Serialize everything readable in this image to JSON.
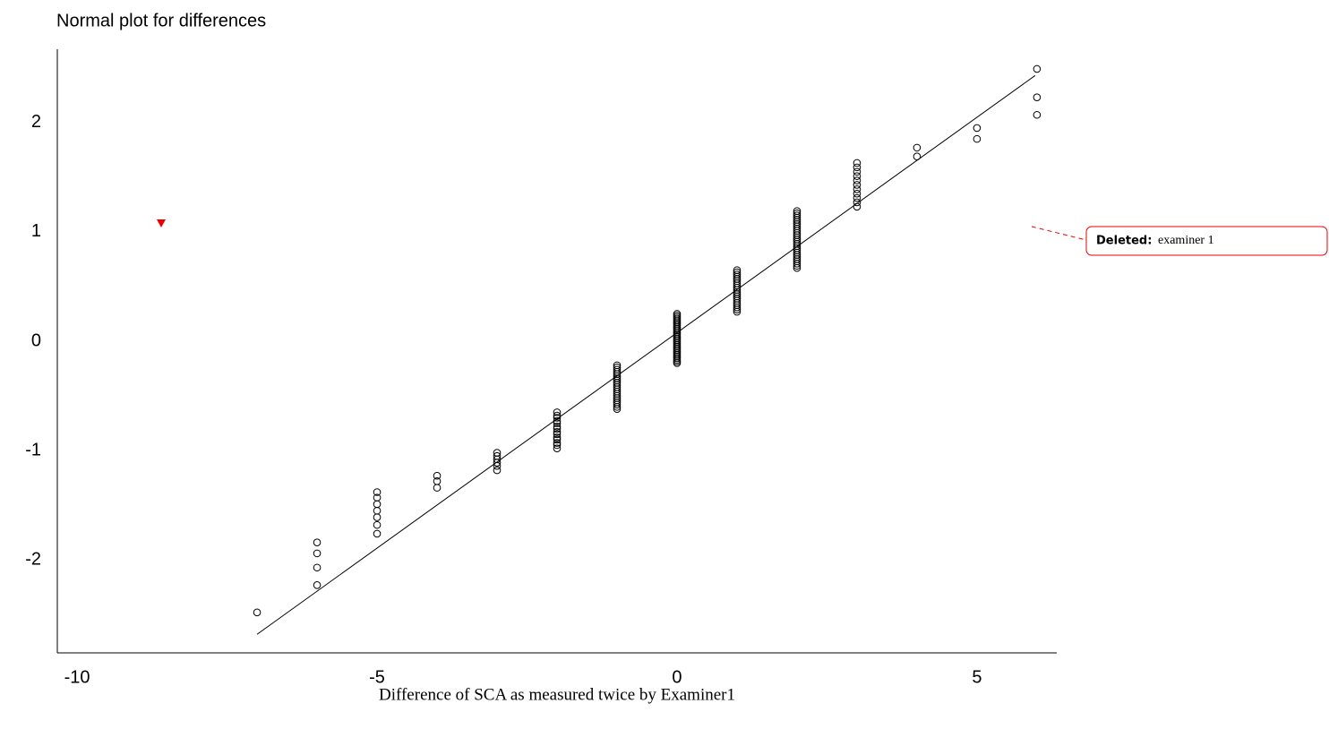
{
  "chart_data": {
    "type": "scatter",
    "title": "Normal plot for differences",
    "x_label": "Difference of SCA as measured twice by Examiner1",
    "x": [
      -7,
      -6,
      -6,
      -6,
      -6,
      -5,
      -5,
      -5,
      -5,
      -5,
      -5,
      -5,
      -4,
      -4,
      -4,
      -3,
      -3,
      -3,
      -3,
      -3,
      -3,
      -2,
      -2,
      -2,
      -2,
      -2,
      -2,
      -2,
      -2,
      -2,
      -2,
      -2,
      -2,
      -2,
      -2,
      -1,
      -1,
      -1,
      -1,
      -1,
      -1,
      -1,
      -1,
      -1,
      -1,
      -1,
      -1,
      -1,
      -1,
      -1,
      -1,
      -1,
      -1,
      -1,
      -1,
      -1,
      0,
      0,
      0,
      0,
      0,
      0,
      0,
      0,
      0,
      0,
      0,
      0,
      0,
      0,
      0,
      0,
      0,
      0,
      0,
      0,
      0,
      0,
      0,
      0,
      0,
      0,
      0,
      0,
      0,
      0,
      0,
      1,
      1,
      1,
      1,
      1,
      1,
      1,
      1,
      1,
      1,
      1,
      1,
      1,
      1,
      1,
      1,
      1,
      1,
      1,
      1,
      2,
      2,
      2,
      2,
      2,
      2,
      2,
      2,
      2,
      2,
      2,
      2,
      2,
      2,
      2,
      2,
      2,
      2,
      2,
      2,
      2,
      2,
      2,
      2,
      2,
      2,
      2,
      3,
      3,
      3,
      3,
      3,
      3,
      3,
      3,
      3,
      3,
      3,
      4,
      4,
      5,
      5,
      6,
      6,
      6
    ],
    "values": [
      -2.48,
      -1.84,
      -1.94,
      -2.07,
      -2.23,
      -1.38,
      -1.43,
      -1.49,
      -1.55,
      -1.61,
      -1.68,
      -1.76,
      -1.23,
      -1.28,
      -1.34,
      -1.02,
      -1.05,
      -1.08,
      -1.11,
      -1.14,
      -1.18,
      -0.65,
      -0.68,
      -0.7,
      -0.73,
      -0.75,
      -0.78,
      -0.8,
      -0.83,
      -0.85,
      -0.88,
      -0.9,
      -0.93,
      -0.95,
      -0.98,
      -0.22,
      -0.24,
      -0.26,
      -0.28,
      -0.3,
      -0.32,
      -0.34,
      -0.36,
      -0.38,
      -0.4,
      -0.42,
      -0.44,
      -0.46,
      -0.48,
      -0.5,
      -0.52,
      -0.54,
      -0.56,
      -0.58,
      -0.6,
      -0.62,
      -0.2,
      -0.185,
      -0.17,
      -0.155,
      -0.14,
      -0.125,
      -0.11,
      -0.095,
      -0.08,
      -0.065,
      -0.05,
      -0.035,
      -0.02,
      -0.005,
      0.01,
      0.025,
      0.04,
      0.055,
      0.07,
      0.085,
      0.1,
      0.115,
      0.13,
      0.145,
      0.16,
      0.175,
      0.19,
      0.205,
      0.22,
      0.235,
      0.25,
      0.27,
      0.29,
      0.31,
      0.33,
      0.35,
      0.37,
      0.39,
      0.41,
      0.43,
      0.45,
      0.47,
      0.49,
      0.51,
      0.53,
      0.55,
      0.57,
      0.59,
      0.61,
      0.63,
      0.65,
      0.67,
      0.69,
      0.71,
      0.73,
      0.75,
      0.77,
      0.79,
      0.81,
      0.83,
      0.85,
      0.87,
      0.89,
      0.91,
      0.93,
      0.95,
      0.97,
      0.99,
      1.01,
      1.03,
      1.05,
      1.07,
      1.09,
      1.11,
      1.13,
      1.15,
      1.17,
      1.19,
      1.23,
      1.27,
      1.31,
      1.35,
      1.39,
      1.43,
      1.47,
      1.51,
      1.55,
      1.59,
      1.63,
      1.69,
      1.77,
      1.85,
      1.95,
      2.07,
      2.23,
      2.49
    ],
    "fit_line": {
      "x": [
        -7,
        5.97
      ],
      "y": [
        -2.68,
        2.43
      ]
    },
    "xlim": [
      -10.33,
      6.33
    ],
    "ylim": [
      -2.85,
      2.67
    ],
    "xticks": [
      -10,
      -5,
      0,
      5
    ],
    "yticks": [
      -2,
      -1,
      0,
      1,
      2
    ],
    "comment": {
      "label": "Deleted:",
      "text": "examiner 1"
    }
  }
}
